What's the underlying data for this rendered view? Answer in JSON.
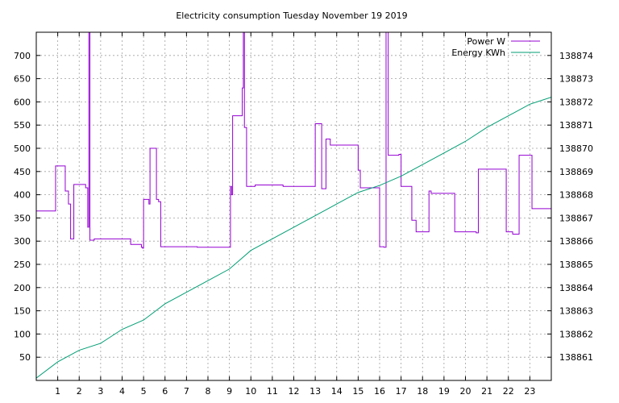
{
  "chart_data": {
    "type": "line",
    "title": "Electricity consumption Tuesday November 19 2019",
    "xlabel": "",
    "ylabel": "",
    "y2label": "",
    "xlim": [
      0,
      24
    ],
    "ylim": [
      0,
      750
    ],
    "y2lim": [
      138860,
      138875
    ],
    "x_ticks": [
      1,
      2,
      3,
      4,
      5,
      6,
      7,
      8,
      9,
      10,
      11,
      12,
      13,
      14,
      15,
      16,
      17,
      18,
      19,
      20,
      21,
      22,
      23
    ],
    "y_ticks": [
      50,
      100,
      150,
      200,
      250,
      300,
      350,
      400,
      450,
      500,
      550,
      600,
      650,
      700
    ],
    "y2_ticks": [
      138861,
      138862,
      138863,
      138864,
      138865,
      138866,
      138867,
      138868,
      138869,
      138870,
      138871,
      138872,
      138873,
      138874
    ],
    "grid": true,
    "legend_position": "top-right",
    "series": [
      {
        "name": "Power W",
        "axis": "left",
        "color": "#9400d3",
        "step": true,
        "x": [
          0,
          0.9,
          1.35,
          1.5,
          1.6,
          1.75,
          2.3,
          2.4,
          2.45,
          2.5,
          2.55,
          2.7,
          4.4,
          4.9,
          4.95,
          5.0,
          5.25,
          5.3,
          5.6,
          5.7,
          5.8,
          7.4,
          7.5,
          9.0,
          9.05,
          9.1,
          9.15,
          9.6,
          9.65,
          9.7,
          9.8,
          10.2,
          11.3,
          11.5,
          12.6,
          13.0,
          13.2,
          13.3,
          13.5,
          13.7,
          14.6,
          15.0,
          15.1,
          16.0,
          16.2,
          16.3,
          16.4,
          16.9,
          17.0,
          17.5,
          17.7,
          18.3,
          18.4,
          19.5,
          20.5,
          20.6,
          21.1,
          21.9,
          22.2,
          22.5,
          23.0,
          23.1,
          24.0
        ],
        "y": [
          365,
          462,
          408,
          380,
          305,
          422,
          415,
          330,
          750,
          302,
          302,
          305,
          293,
          287,
          285,
          390,
          380,
          500,
          390,
          385,
          288,
          288,
          287,
          287,
          418,
          400,
          570,
          630,
          750,
          545,
          418,
          421,
          421,
          418,
          418,
          553,
          553,
          413,
          520,
          507,
          507,
          453,
          415,
          288,
          287,
          750,
          485,
          487,
          418,
          345,
          320,
          408,
          403,
          320,
          318,
          455,
          455,
          320,
          315,
          485,
          485,
          370,
          367
        ]
      },
      {
        "name": "Energy KWh",
        "axis": "right",
        "color": "#009e73",
        "step": false,
        "x": [
          0,
          1,
          2,
          3,
          4,
          5,
          6,
          7,
          8,
          9,
          9.5,
          10,
          11,
          12,
          13,
          14,
          15,
          16,
          17,
          18,
          19,
          20,
          21,
          22,
          23,
          24
        ],
        "y": [
          138860.1,
          138860.8,
          138861.3,
          138861.6,
          138862.2,
          138862.6,
          138863.3,
          138863.8,
          138864.3,
          138864.8,
          138865.2,
          138865.6,
          138866.1,
          138866.6,
          138867.1,
          138867.6,
          138868.1,
          138868.4,
          138868.8,
          138869.3,
          138869.8,
          138870.3,
          138870.9,
          138871.4,
          138871.9,
          138872.2
        ]
      }
    ]
  }
}
